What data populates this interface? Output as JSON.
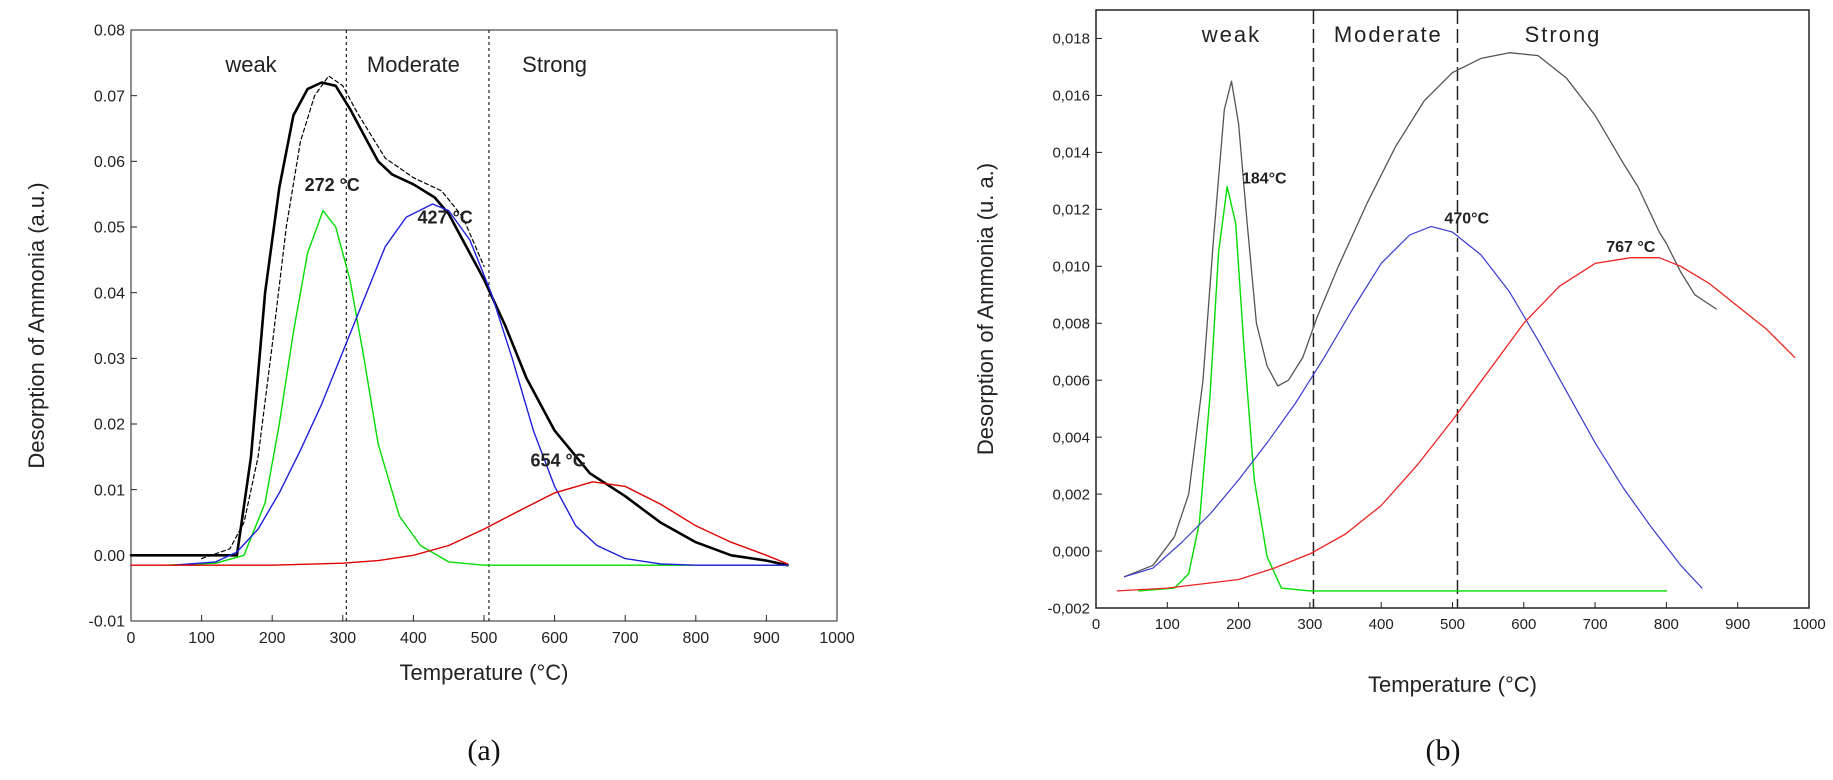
{
  "chart_data": [
    {
      "type": "line",
      "panel_label": "(a)",
      "xlabel": "Temperature (°C)",
      "ylabel": "Desorption of Ammonia (a.u.)",
      "xlim": [
        0,
        1000
      ],
      "ylim": [
        -0.01,
        0.08
      ],
      "x_ticks": [
        0,
        100,
        200,
        300,
        400,
        500,
        600,
        700,
        800,
        900,
        1000
      ],
      "x_tick_labels": [
        "0",
        "100",
        "200",
        "300",
        "400",
        "500",
        "600",
        "700",
        "800",
        "900",
        "1000"
      ],
      "y_ticks": [
        -0.01,
        0.0,
        0.01,
        0.02,
        0.03,
        0.04,
        0.05,
        0.06,
        0.07,
        0.08
      ],
      "y_tick_labels": [
        "-0.01",
        "0.00",
        "0.01",
        "0.02",
        "0.03",
        "0.04",
        "0.05",
        "0.06",
        "0.07",
        "0.08"
      ],
      "grid": false,
      "region_dividers": [
        305,
        507
      ],
      "regions": [
        {
          "label": "weak",
          "x": 170
        },
        {
          "label": "Moderate",
          "x": 400
        },
        {
          "label": "Strong",
          "x": 600
        }
      ],
      "annotations": [
        {
          "text": "272 °C",
          "x": 285,
          "y": 0.0555
        },
        {
          "text": "427 °C",
          "x": 445,
          "y": 0.0505
        },
        {
          "text": "654 °C",
          "x": 605,
          "y": 0.0135
        }
      ],
      "series": [
        {
          "color": "#000000",
          "width": 2.6,
          "dash": "",
          "x": [
            0,
            60,
            100,
            130,
            150,
            170,
            190,
            210,
            230,
            250,
            270,
            290,
            310,
            330,
            350,
            370,
            400,
            430,
            450,
            470,
            500,
            530,
            560,
            600,
            650,
            700,
            750,
            800,
            850,
            900,
            930
          ],
          "y": [
            0.0,
            0.0,
            0.0,
            0.0,
            0.0,
            0.015,
            0.04,
            0.056,
            0.067,
            0.071,
            0.072,
            0.0715,
            0.068,
            0.064,
            0.06,
            0.058,
            0.0565,
            0.0545,
            0.052,
            0.048,
            0.042,
            0.035,
            0.027,
            0.019,
            0.0125,
            0.009,
            0.005,
            0.002,
            0.0,
            -0.0008,
            -0.0015
          ]
        },
        {
          "color": "#000000",
          "width": 1.2,
          "dash": "4,3",
          "x": [
            100,
            140,
            160,
            180,
            200,
            220,
            240,
            260,
            280,
            300,
            320,
            360,
            400,
            440,
            470,
            500
          ],
          "y": [
            -0.0005,
            0.001,
            0.005,
            0.015,
            0.032,
            0.05,
            0.063,
            0.07,
            0.073,
            0.0715,
            0.0675,
            0.0605,
            0.0575,
            0.0555,
            0.0515,
            0.044
          ]
        },
        {
          "color": "#00dd00",
          "width": 1.4,
          "dash": "",
          "x": [
            50,
            120,
            160,
            190,
            210,
            230,
            250,
            272,
            290,
            310,
            330,
            350,
            380,
            410,
            450,
            500,
            600,
            800,
            930
          ],
          "y": [
            -0.0015,
            -0.0012,
            0.0,
            0.008,
            0.02,
            0.034,
            0.046,
            0.0525,
            0.05,
            0.042,
            0.03,
            0.017,
            0.006,
            0.0015,
            -0.001,
            -0.0015,
            -0.0015,
            -0.0015,
            -0.0015
          ]
        },
        {
          "color": "#1f1fdd",
          "width": 1.4,
          "dash": "",
          "x": [
            60,
            120,
            150,
            180,
            210,
            240,
            270,
            300,
            330,
            360,
            390,
            427,
            450,
            480,
            510,
            540,
            570,
            600,
            630,
            660,
            700,
            750,
            800,
            860,
            930
          ],
          "y": [
            -0.0015,
            -0.001,
            0.0005,
            0.004,
            0.0095,
            0.016,
            0.023,
            0.031,
            0.039,
            0.047,
            0.0515,
            0.0535,
            0.0525,
            0.048,
            0.04,
            0.03,
            0.019,
            0.0105,
            0.0045,
            0.0015,
            -0.0005,
            -0.0013,
            -0.0015,
            -0.0015,
            -0.0015
          ]
        },
        {
          "color": "#e00000",
          "width": 1.4,
          "dash": "",
          "x": [
            0,
            100,
            200,
            300,
            350,
            400,
            450,
            500,
            550,
            600,
            654,
            700,
            750,
            800,
            850,
            900,
            930
          ],
          "y": [
            -0.0015,
            -0.0015,
            -0.0015,
            -0.0012,
            -0.0008,
            0.0,
            0.0015,
            0.004,
            0.0068,
            0.0095,
            0.0112,
            0.0105,
            0.0078,
            0.0045,
            0.002,
            0.0,
            -0.0013
          ]
        }
      ]
    },
    {
      "type": "line",
      "panel_label": "(b)",
      "xlabel": "Temperature (°C)",
      "ylabel": "Desorption of Ammonia (u. a.)",
      "xlim": [
        0,
        1000
      ],
      "ylim": [
        -0.002,
        0.019
      ],
      "x_ticks": [
        0,
        100,
        200,
        300,
        400,
        500,
        600,
        700,
        800,
        900,
        1000
      ],
      "x_tick_labels": [
        "0",
        "100",
        "200",
        "300",
        "400",
        "500",
        "600",
        "700",
        "800",
        "900",
        "1000"
      ],
      "y_ticks": [
        -0.002,
        0.0,
        0.002,
        0.004,
        0.006,
        0.008,
        0.01,
        0.012,
        0.014,
        0.016,
        0.018
      ],
      "y_tick_labels": [
        "-0,002",
        "0,000",
        "0,002",
        "0,004",
        "0,006",
        "0,008",
        "0,010",
        "0,012",
        "0,014",
        "0,016",
        "0,018"
      ],
      "grid": false,
      "region_dividers": [
        305,
        507
      ],
      "regions": [
        {
          "label": "weak",
          "x": 190
        },
        {
          "label": "Moderate",
          "x": 410
        },
        {
          "label": "Strong",
          "x": 655
        }
      ],
      "annotations": [
        {
          "text": "184°C",
          "x": 236,
          "y": 0.0129
        },
        {
          "text": "470°C",
          "x": 520,
          "y": 0.0115
        },
        {
          "text": "767 °C",
          "x": 750,
          "y": 0.0105
        }
      ],
      "series": [
        {
          "color": "#555555",
          "width": 1.3,
          "dash": "",
          "x": [
            40,
            80,
            110,
            130,
            150,
            165,
            180,
            190,
            200,
            212,
            225,
            240,
            255,
            270,
            290,
            310,
            340,
            380,
            420,
            460,
            500,
            540,
            580,
            620,
            660,
            700,
            740,
            760,
            790,
            800,
            820,
            840,
            870
          ],
          "y": [
            -0.0009,
            -0.0005,
            0.0005,
            0.002,
            0.006,
            0.011,
            0.0155,
            0.0165,
            0.015,
            0.0115,
            0.008,
            0.0065,
            0.0058,
            0.006,
            0.0068,
            0.0082,
            0.01,
            0.0122,
            0.0142,
            0.0158,
            0.0168,
            0.0173,
            0.0175,
            0.0174,
            0.0166,
            0.0153,
            0.0136,
            0.0128,
            0.0112,
            0.0108,
            0.0098,
            0.009,
            0.0085
          ]
        },
        {
          "color": "#00dd00",
          "width": 1.4,
          "dash": "",
          "x": [
            60,
            110,
            130,
            145,
            160,
            172,
            184,
            196,
            208,
            222,
            240,
            260,
            300,
            400,
            500,
            600,
            700,
            800
          ],
          "y": [
            -0.0014,
            -0.0013,
            -0.0008,
            0.001,
            0.0055,
            0.0105,
            0.0128,
            0.0115,
            0.007,
            0.0025,
            -0.0002,
            -0.0013,
            -0.0014,
            -0.0014,
            -0.0014,
            -0.0014,
            -0.0014,
            -0.0014
          ]
        },
        {
          "color": "#3a3ad0",
          "width": 1.2,
          "dash": "",
          "x": [
            40,
            80,
            120,
            160,
            200,
            240,
            280,
            320,
            360,
            400,
            440,
            470,
            500,
            540,
            580,
            620,
            660,
            700,
            740,
            780,
            820,
            850
          ],
          "y": [
            -0.0009,
            -0.0006,
            0.0003,
            0.0013,
            0.0025,
            0.0038,
            0.0052,
            0.0068,
            0.0085,
            0.0101,
            0.0111,
            0.0114,
            0.0112,
            0.0104,
            0.0091,
            0.0074,
            0.0056,
            0.0038,
            0.0022,
            0.0008,
            -0.0005,
            -0.0013
          ]
        },
        {
          "color": "#ee2222",
          "width": 1.3,
          "dash": "",
          "x": [
            30,
            100,
            200,
            250,
            300,
            350,
            400,
            450,
            500,
            550,
            600,
            650,
            700,
            750,
            790,
            820,
            860,
            900,
            940,
            980
          ],
          "y": [
            -0.0014,
            -0.0013,
            -0.001,
            -0.0006,
            -0.0001,
            0.0006,
            0.0016,
            0.003,
            0.0046,
            0.0063,
            0.008,
            0.0093,
            0.0101,
            0.0103,
            0.0103,
            0.01,
            0.0094,
            0.0086,
            0.0078,
            0.0068
          ]
        }
      ]
    }
  ]
}
